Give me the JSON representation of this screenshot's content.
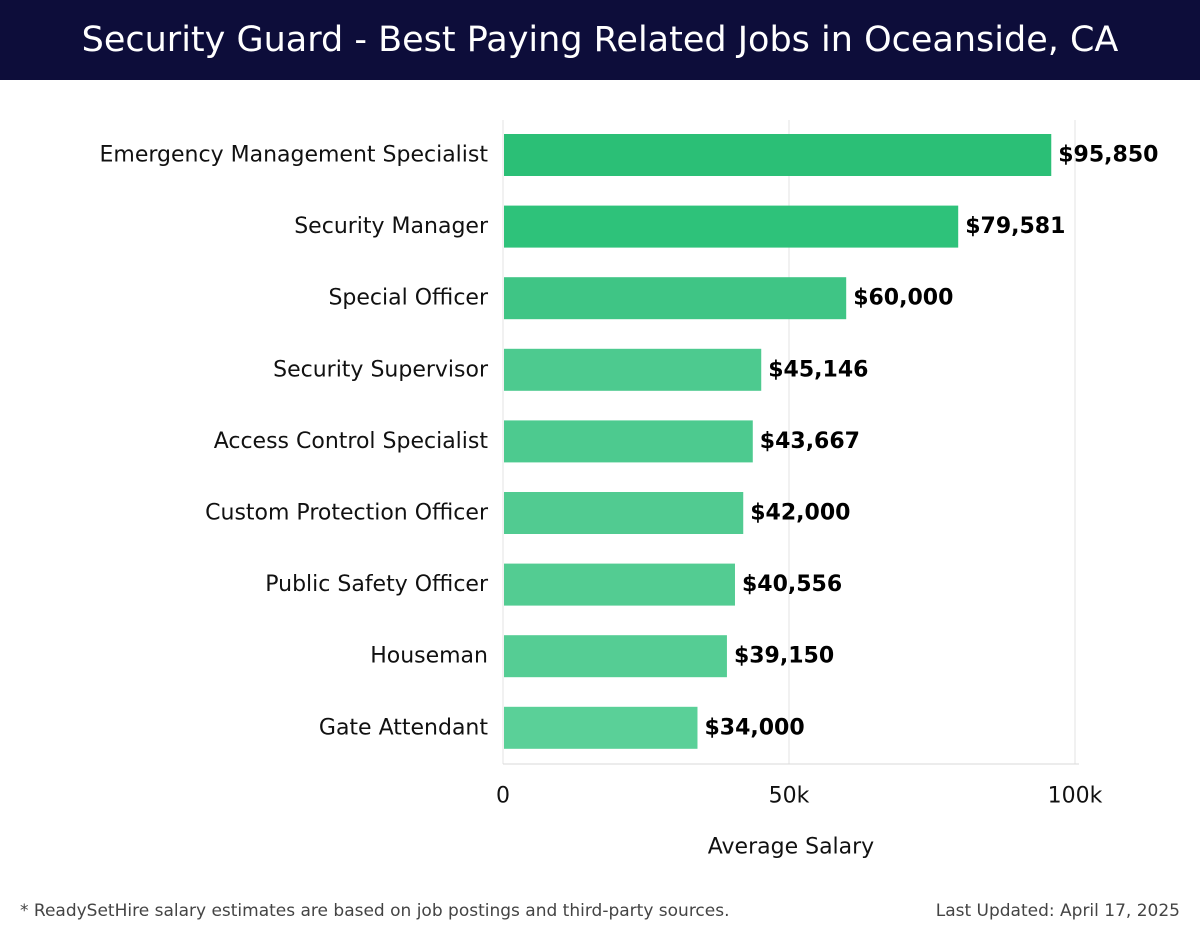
{
  "header": {
    "title": "Security Guard - Best Paying Related Jobs in Oceanside, CA"
  },
  "footer": {
    "note": "* ReadySetHire salary estimates are based on job postings and third-party sources.",
    "updated": "Last Updated: April 17, 2025"
  },
  "chart_data": {
    "type": "bar",
    "orientation": "horizontal",
    "title": "Security Guard - Best Paying Related Jobs in Oceanside, CA",
    "xlabel": "Average Salary",
    "ylabel": "",
    "xlim": [
      0,
      100000
    ],
    "x_ticks": [
      0,
      50000,
      100000
    ],
    "x_tick_labels": [
      "0",
      "50k",
      "100k"
    ],
    "grid": true,
    "categories": [
      "Emergency Management Specialist",
      "Security Manager",
      "Special Officer",
      "Security Supervisor",
      "Access Control Specialist",
      "Custom Protection Officer",
      "Public Safety Officer",
      "Houseman",
      "Gate Attendant"
    ],
    "values": [
      95850,
      79581,
      60000,
      45146,
      43667,
      42000,
      40556,
      39150,
      34000
    ],
    "value_labels": [
      "$95,850",
      "$79,581",
      "$60,000",
      "$45,146",
      "$43,667",
      "$42,000",
      "$40,556",
      "$39,150",
      "$34,000"
    ],
    "bar_colors": [
      "#2bbf76",
      "#2ec27a",
      "#3fc585",
      "#4dca8f",
      "#4dca8f",
      "#51cb91",
      "#53cc92",
      "#55cd94",
      "#5ad098"
    ]
  }
}
